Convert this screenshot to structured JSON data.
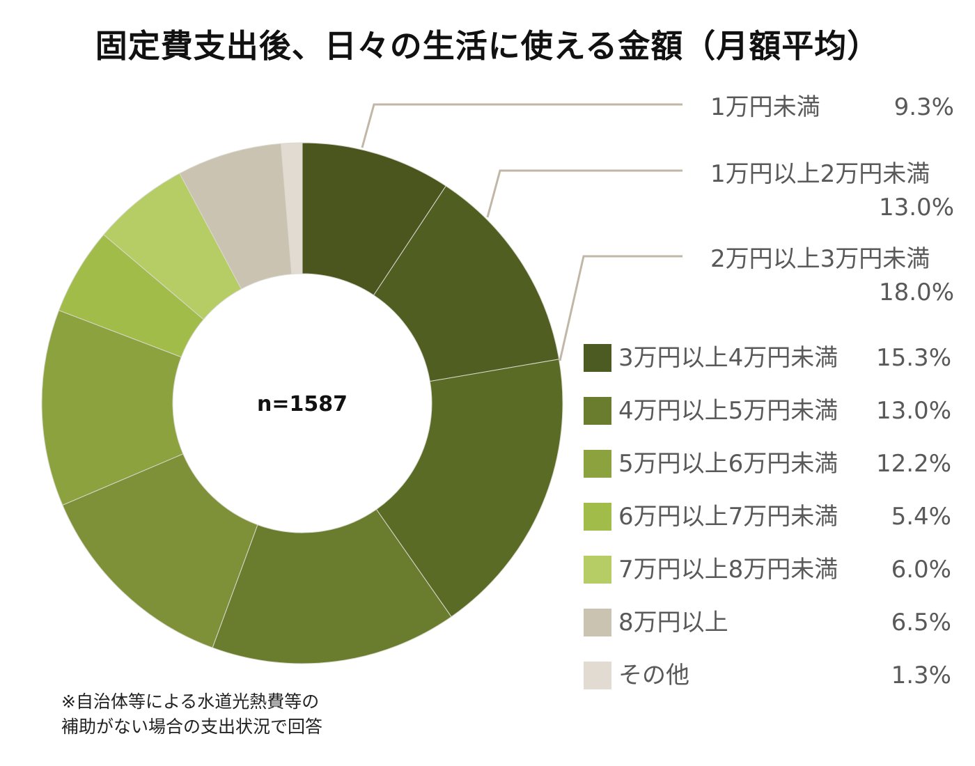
{
  "title": "固定費支出後、日々の生活に使える金額（月額平均）",
  "center_label": "n=1587",
  "note_lines": [
    "※自治体等による水道光熱費等の",
    "補助がない場合の支出状況で回答"
  ],
  "chart_data": {
    "type": "pie",
    "title": "固定費支出後、日々の生活に使える金額（月額平均）",
    "center_label": "n=1587",
    "unit": "%",
    "categories": [
      "1万円未満",
      "1万円以上2万円未満",
      "2万円以上3万円未満",
      "3万円以上4万円未満",
      "4万円以上5万円未満",
      "5万円以上6万円未満",
      "6万円以上7万円未満",
      "7万円以上8万円未満",
      "8万円以上",
      "その他"
    ],
    "values": [
      9.3,
      13.0,
      18.0,
      15.3,
      13.0,
      12.2,
      5.4,
      6.0,
      6.5,
      1.3
    ],
    "value_labels": [
      "9.3%",
      "13.0%",
      "18.0%",
      "15.3%",
      "13.0%",
      "12.2%",
      "5.4%",
      "6.0%",
      "6.5%",
      "1.3%"
    ],
    "colors": [
      "#4a561e",
      "#505e22",
      "#5a6b25",
      "#6a7d2e",
      "#7e9038",
      "#8ca23e",
      "#a2bc4a",
      "#b6cd66",
      "#cbc3b2",
      "#e1dbd1"
    ],
    "callout_line_color": "#c0b7a6",
    "legend_placement": "right"
  }
}
